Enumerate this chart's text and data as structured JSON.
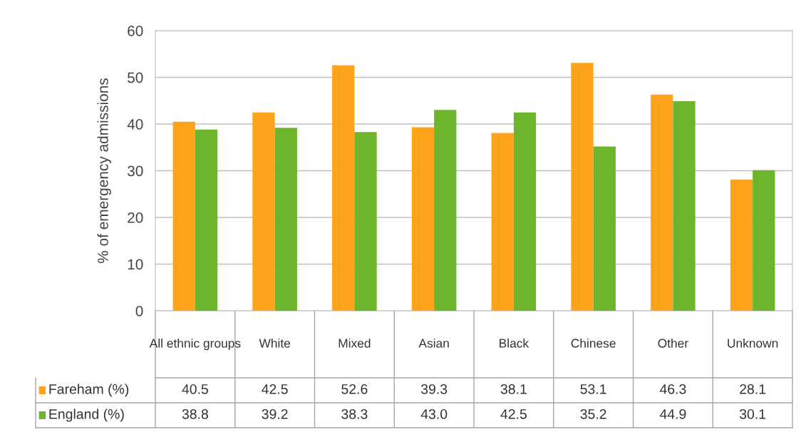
{
  "chart_data": {
    "type": "bar",
    "ylabel": "% of emergency admissions",
    "categories": [
      "All ethnic groups",
      "White",
      "Mixed",
      "Asian",
      "Black",
      "Chinese",
      "Other",
      "Unknown"
    ],
    "series": [
      {
        "name": "Fareham (%)",
        "color": "#ffa31a",
        "values": [
          40.5,
          42.5,
          52.6,
          39.3,
          38.1,
          53.1,
          46.3,
          28.1
        ],
        "value_labels": [
          "40.5",
          "42.5",
          "52.6",
          "39.3",
          "38.1",
          "53.1",
          "46.3",
          "28.1"
        ]
      },
      {
        "name": "England (%)",
        "color": "#6cb52d",
        "values": [
          38.8,
          39.2,
          38.3,
          43.0,
          42.5,
          35.2,
          44.9,
          30.1
        ],
        "value_labels": [
          "38.8",
          "39.2",
          "38.3",
          "43.0",
          "42.5",
          "35.2",
          "44.9",
          "30.1"
        ]
      }
    ],
    "ylim": [
      0,
      60
    ],
    "yticks": [
      0,
      10,
      20,
      30,
      40,
      50,
      60
    ],
    "grid": "y",
    "legend": "bottom"
  }
}
